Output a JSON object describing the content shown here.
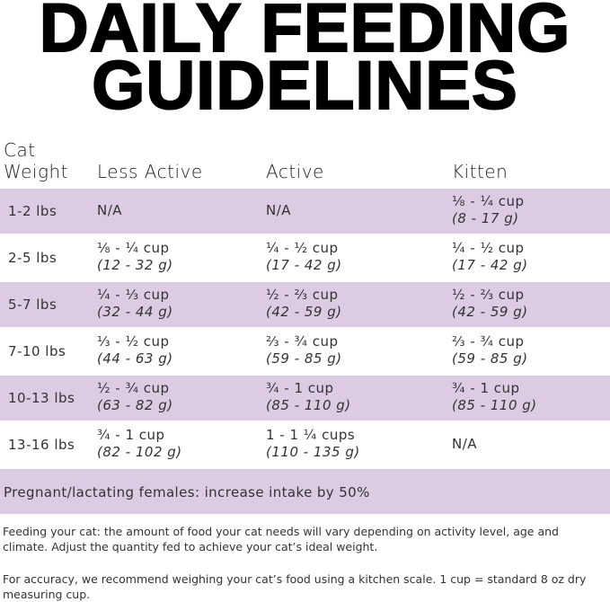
{
  "title": {
    "line1": "DAILY FEEDING",
    "line2": "GUIDELINES"
  },
  "table": {
    "headers": {
      "weight_line1": "Cat",
      "weight_line2": "Weight",
      "less_active": "Less Active",
      "active": "Active",
      "kitten": "Kitten"
    },
    "row_color": "#dccbe3",
    "rows": [
      {
        "weight": "1-2 lbs",
        "less_active": {
          "cup": "N/A",
          "grams": ""
        },
        "active": {
          "cup": "N/A",
          "grams": ""
        },
        "kitten": {
          "cup": "⅛ - ¼ cup",
          "grams": "(8 - 17 g)"
        }
      },
      {
        "weight": "2-5 lbs",
        "less_active": {
          "cup": "⅛ - ¼ cup",
          "grams": "(12 - 32 g)"
        },
        "active": {
          "cup": "¼ - ½ cup",
          "grams": "(17 - 42 g)"
        },
        "kitten": {
          "cup": "¼ - ½ cup",
          "grams": "(17 - 42 g)"
        }
      },
      {
        "weight": "5-7 lbs",
        "less_active": {
          "cup": "¼ - ⅓ cup",
          "grams": "(32 - 44 g)"
        },
        "active": {
          "cup": "½ - ⅔ cup",
          "grams": "(42 - 59 g)"
        },
        "kitten": {
          "cup": "½ - ⅔ cup",
          "grams": "(42 - 59 g)"
        }
      },
      {
        "weight": "7-10 lbs",
        "less_active": {
          "cup": "⅓ - ½ cup",
          "grams": "(44 - 63 g)"
        },
        "active": {
          "cup": "⅔ - ¾ cup",
          "grams": "(59 - 85 g)"
        },
        "kitten": {
          "cup": "⅔ - ¾ cup",
          "grams": "(59 - 85 g)"
        }
      },
      {
        "weight": "10-13 lbs",
        "less_active": {
          "cup": "½ - ¾ cup",
          "grams": "(63 - 82 g)"
        },
        "active": {
          "cup": "¾ - 1 cup",
          "grams": "(85 - 110 g)"
        },
        "kitten": {
          "cup": "¾ - 1 cup",
          "grams": "(85 - 110 g)"
        }
      },
      {
        "weight": "13-16 lbs",
        "less_active": {
          "cup": "¾ - 1 cup",
          "grams": "(82 - 102 g)"
        },
        "active": {
          "cup": "1 - 1 ¼ cups",
          "grams": "(110 - 135 g)"
        },
        "kitten": {
          "cup": "N/A",
          "grams": ""
        }
      }
    ],
    "note": "Pregnant/lactating females: increase intake by 50%"
  },
  "footer": {
    "para1": "Feeding your cat: the amount of food your cat needs will vary depending on activity level, age and climate. Adjust the quantity fed to achieve your cat’s ideal weight.",
    "para2": "For accuracy, we recommend weighing your cat’s food using a kitchen scale. 1 cup = standard 8 oz dry measuring cup."
  }
}
